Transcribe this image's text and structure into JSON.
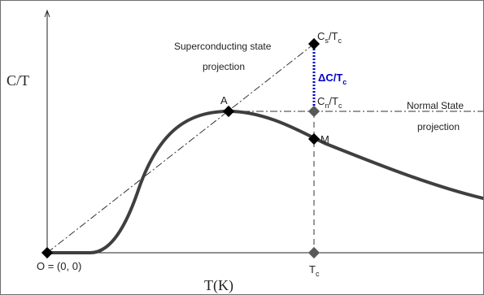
{
  "labels": {
    "y_axis": "C/T",
    "x_axis": "T(K)",
    "origin": "O = (0, 0)",
    "point_a": "A",
    "point_m": "M",
    "tc_base": "T",
    "tc_sub": "c",
    "cs_base": "C",
    "cs_sub": "s",
    "cs_mid": "/T",
    "cs_sub2": "c",
    "cn_base": "C",
    "cn_sub": "n",
    "cn_mid": "/T",
    "cn_sub2": "c",
    "delta_base": "ΔC/T",
    "delta_sub": "c",
    "superconducting_line1": "Superconducting state",
    "superconducting_line2": "projection",
    "normal_line1": "Normal State",
    "normal_line2": "projection"
  },
  "colors": {
    "curve": "#3f3f3f",
    "marker_black": "#000000",
    "marker_grey": "#595959",
    "delta": "#0000cc",
    "axis": "#222222",
    "guide": "#333333"
  }
}
